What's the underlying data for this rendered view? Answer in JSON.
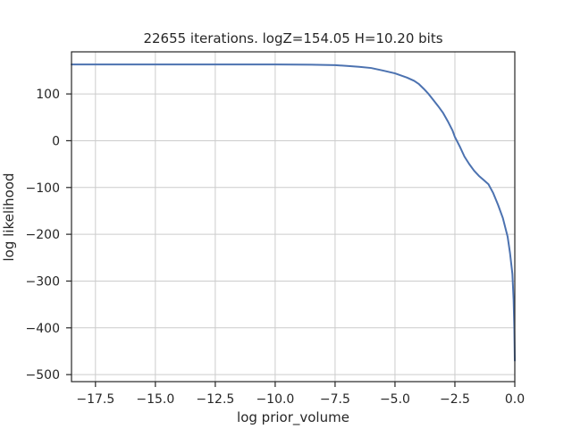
{
  "chart_data": {
    "type": "line",
    "title": "22655 iterations. logZ=154.05 H=10.20 bits",
    "xlabel": "log prior_volume",
    "ylabel": "log likelihood",
    "xlim": [
      -18.5,
      0.0
    ],
    "ylim": [
      -515,
      190
    ],
    "xticks": [
      -17.5,
      -15.0,
      -12.5,
      -10.0,
      -7.5,
      -5.0,
      -2.5,
      0.0
    ],
    "xtick_labels": [
      "−17.5",
      "−15.0",
      "−12.5",
      "−10.0",
      "−7.5",
      "−5.0",
      "−2.5",
      "0.0"
    ],
    "yticks": [
      100,
      0,
      -100,
      -200,
      -300,
      -400,
      -500
    ],
    "ytick_labels": [
      "100",
      "0",
      "−100",
      "−200",
      "−300",
      "−400",
      "−500"
    ],
    "grid": true,
    "series": [
      {
        "color": "#4c72b0",
        "x": [
          -18.5,
          -17.0,
          -15.0,
          -12.5,
          -10.0,
          -8.5,
          -7.5,
          -7.0,
          -6.5,
          -6.0,
          -5.5,
          -5.0,
          -4.5,
          -4.2,
          -4.0,
          -3.8,
          -3.6,
          -3.4,
          -3.2,
          -3.0,
          -2.8,
          -2.6,
          -2.5,
          -2.3,
          -2.1,
          -1.9,
          -1.7,
          -1.5,
          -1.3,
          -1.1,
          -0.9,
          -0.7,
          -0.5,
          -0.3,
          -0.2,
          -0.1,
          -0.05,
          -0.02,
          0.0
        ],
        "y": [
          163,
          163,
          163,
          163,
          163,
          162.5,
          161.5,
          160,
          158,
          155.5,
          150,
          144,
          135,
          128,
          121,
          111,
          100,
          87,
          74,
          60,
          42,
          22,
          8,
          -12,
          -34,
          -50,
          -64,
          -75,
          -84,
          -93,
          -112,
          -137,
          -165,
          -205,
          -240,
          -285,
          -340,
          -400,
          -470
        ]
      }
    ]
  }
}
